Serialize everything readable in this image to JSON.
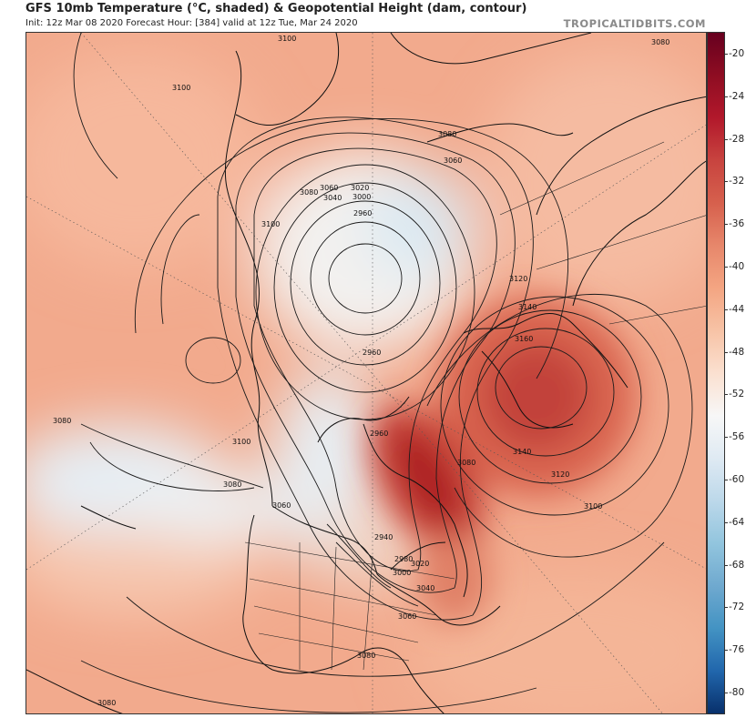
{
  "header": {
    "title": "GFS 10mb Temperature (°C, shaded) & Geopotential Height (dam, contour)",
    "subtitle": "Init: 12z Mar 08 2020   Forecast Hour: [384]   valid at 12z Tue, Mar 24 2020",
    "brand": "TROPICALTIDBITS.COM"
  },
  "colorbar": {
    "ticks": [
      "-20",
      "-24",
      "-28",
      "-32",
      "-36",
      "-40",
      "-44",
      "-48",
      "-52",
      "-56",
      "-60",
      "-64",
      "-68",
      "-72",
      "-76",
      "-80"
    ],
    "colors": [
      "#67001f",
      "#8e0d22",
      "#b2182b",
      "#c8443f",
      "#d6604d",
      "#e7876b",
      "#f4a582",
      "#f7c3a6",
      "#fbe0d0",
      "#f7f7f7",
      "#dfeaf3",
      "#bcd8ea",
      "#92c5de",
      "#6fa9cf",
      "#4393c3",
      "#2166ac",
      "#08306b"
    ]
  },
  "map": {
    "contour_labels": [
      "3100",
      "3080",
      "3100",
      "3080",
      "3060",
      "3080",
      "3060",
      "3040",
      "3020",
      "3000",
      "3100",
      "2960",
      "3120",
      "3140",
      "3160",
      "2960",
      "3080",
      "3100",
      "3080",
      "2960",
      "3060",
      "2940",
      "2980",
      "3000",
      "3020",
      "3040",
      "3060",
      "3080",
      "3140",
      "3120",
      "3100",
      "3080",
      "3080"
    ],
    "colors": {
      "land_outline": "#111111",
      "contour": "#1a1a1a",
      "warm_peak": "#a8141f",
      "cold_core": "#dbe9f2"
    }
  }
}
